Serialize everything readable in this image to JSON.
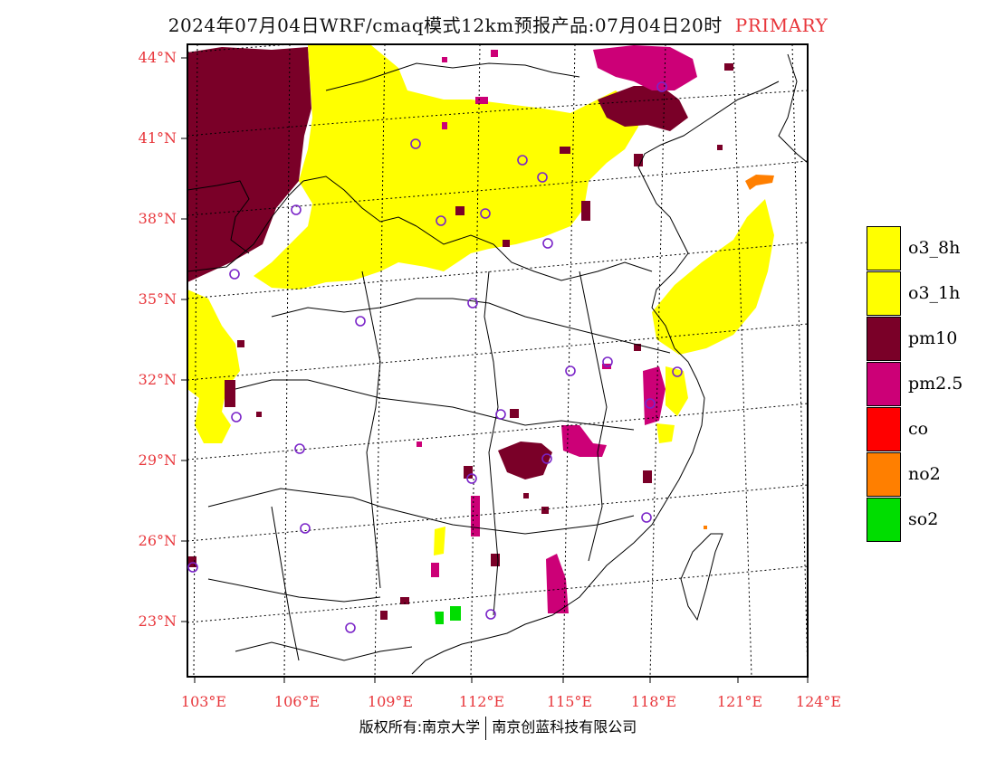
{
  "title": {
    "main": "2024年07月04日WRF/cmaq模式12km预报产品:07月04日20时",
    "tag": "PRIMARY"
  },
  "map": {
    "lat_labels": [
      "44°N",
      "41°N",
      "38°N",
      "35°N",
      "32°N",
      "29°N",
      "26°N",
      "23°N"
    ],
    "lon_labels": [
      "103°E",
      "106°E",
      "109°E",
      "112°E",
      "115°E",
      "118°E",
      "121°E",
      "124°E"
    ]
  },
  "legend": {
    "items": [
      {
        "label": "o3_8h",
        "color": "#ffff00"
      },
      {
        "label": "o3_1h",
        "color": "#ffff00"
      },
      {
        "label": "pm10",
        "color": "#7a0028"
      },
      {
        "label": "pm2.5",
        "color": "#cc0077"
      },
      {
        "label": "co",
        "color": "#ff0000"
      },
      {
        "label": "no2",
        "color": "#ff7f00"
      },
      {
        "label": "so2",
        "color": "#00dd00"
      }
    ]
  },
  "colors": {
    "o3": "#ffff00",
    "pm10": "#7a0028",
    "pm25": "#cc0077",
    "no2": "#ff7f00",
    "so2": "#00dd00",
    "station": "#7a24c8",
    "axis_label": "#e8373c"
  },
  "footer": {
    "left": "版权所有:南京大学",
    "right": "南京创蓝科技有限公司"
  }
}
